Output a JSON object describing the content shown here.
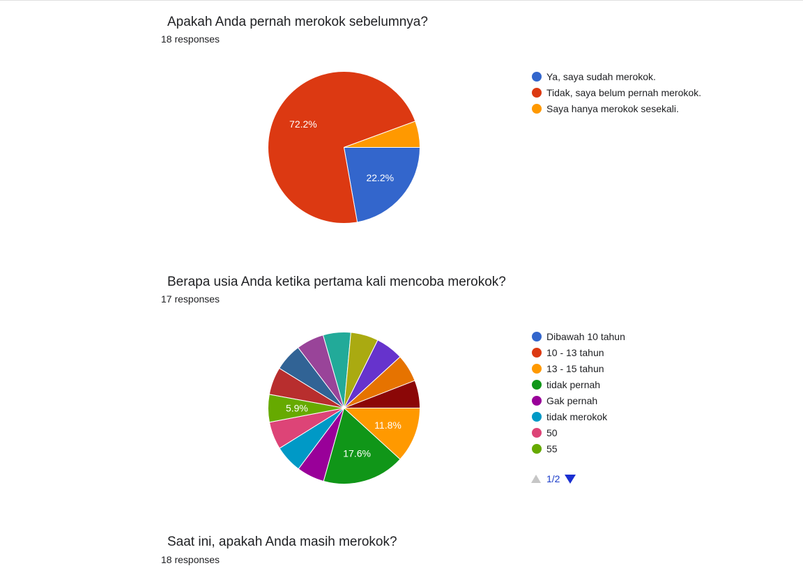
{
  "charts": [
    {
      "question": "Apakah Anda pernah merokok sebelumnya?",
      "responses": "18 responses"
    },
    {
      "question": "Berapa usia Anda ketika pertama kali mencoba merokok?",
      "responses": "17 responses",
      "pager": {
        "label": "1/2"
      }
    },
    {
      "question": "Saat ini, apakah Anda masih merokok?",
      "responses": "18 responses"
    }
  ],
  "chart_data": [
    {
      "type": "pie",
      "title": "Apakah Anda pernah merokok sebelumnya?",
      "start_angle_deg": 90,
      "categories": [
        "Ya, saya sudah merokok.",
        "Tidak, saya belum pernah merokok.",
        "Saya hanya merokok sesekali."
      ],
      "values": [
        22.2,
        72.2,
        5.6
      ],
      "colors": [
        "#3366cc",
        "#dc3912",
        "#ff9900"
      ],
      "slice_order": [
        0,
        1,
        2
      ],
      "slice_labels": [
        "22.2%",
        "72.2%",
        ""
      ],
      "legend": [
        "Ya, saya sudah merokok.",
        "Tidak, saya belum pernah merokok.",
        "Saya hanya merokok sesekali."
      ],
      "legend_colors": [
        "#3366cc",
        "#dc3912",
        "#ff9900"
      ],
      "legend_position": "right"
    },
    {
      "type": "pie",
      "title": "Berapa usia Anda ketika pertama kali mencoba merokok?",
      "start_angle_deg": 90,
      "slice_values": [
        11.8,
        17.6,
        5.9,
        5.9,
        5.9,
        5.9,
        5.9,
        5.9,
        5.9,
        5.9,
        5.9,
        5.9,
        5.9,
        5.9
      ],
      "slice_colors": [
        "#ff9900",
        "#109618",
        "#990099",
        "#0099c6",
        "#dd4477",
        "#66aa00",
        "#b82e2e",
        "#316395",
        "#994499",
        "#22aa99",
        "#aaaa11",
        "#6633cc",
        "#e67300",
        "#8b0707"
      ],
      "slice_labels": [
        "11.8%",
        "17.6%",
        "",
        "",
        "",
        "5.9%",
        "",
        "",
        "",
        "",
        "",
        "",
        "",
        ""
      ],
      "legend": [
        "Dibawah 10 tahun",
        "10 - 13 tahun",
        "13 - 15 tahun",
        "tidak pernah",
        "Gak pernah",
        "tidak merokok",
        "50",
        "55"
      ],
      "legend_colors": [
        "#3366cc",
        "#dc3912",
        "#ff9900",
        "#109618",
        "#990099",
        "#0099c6",
        "#dd4477",
        "#66aa00"
      ],
      "legend_position": "right"
    }
  ]
}
